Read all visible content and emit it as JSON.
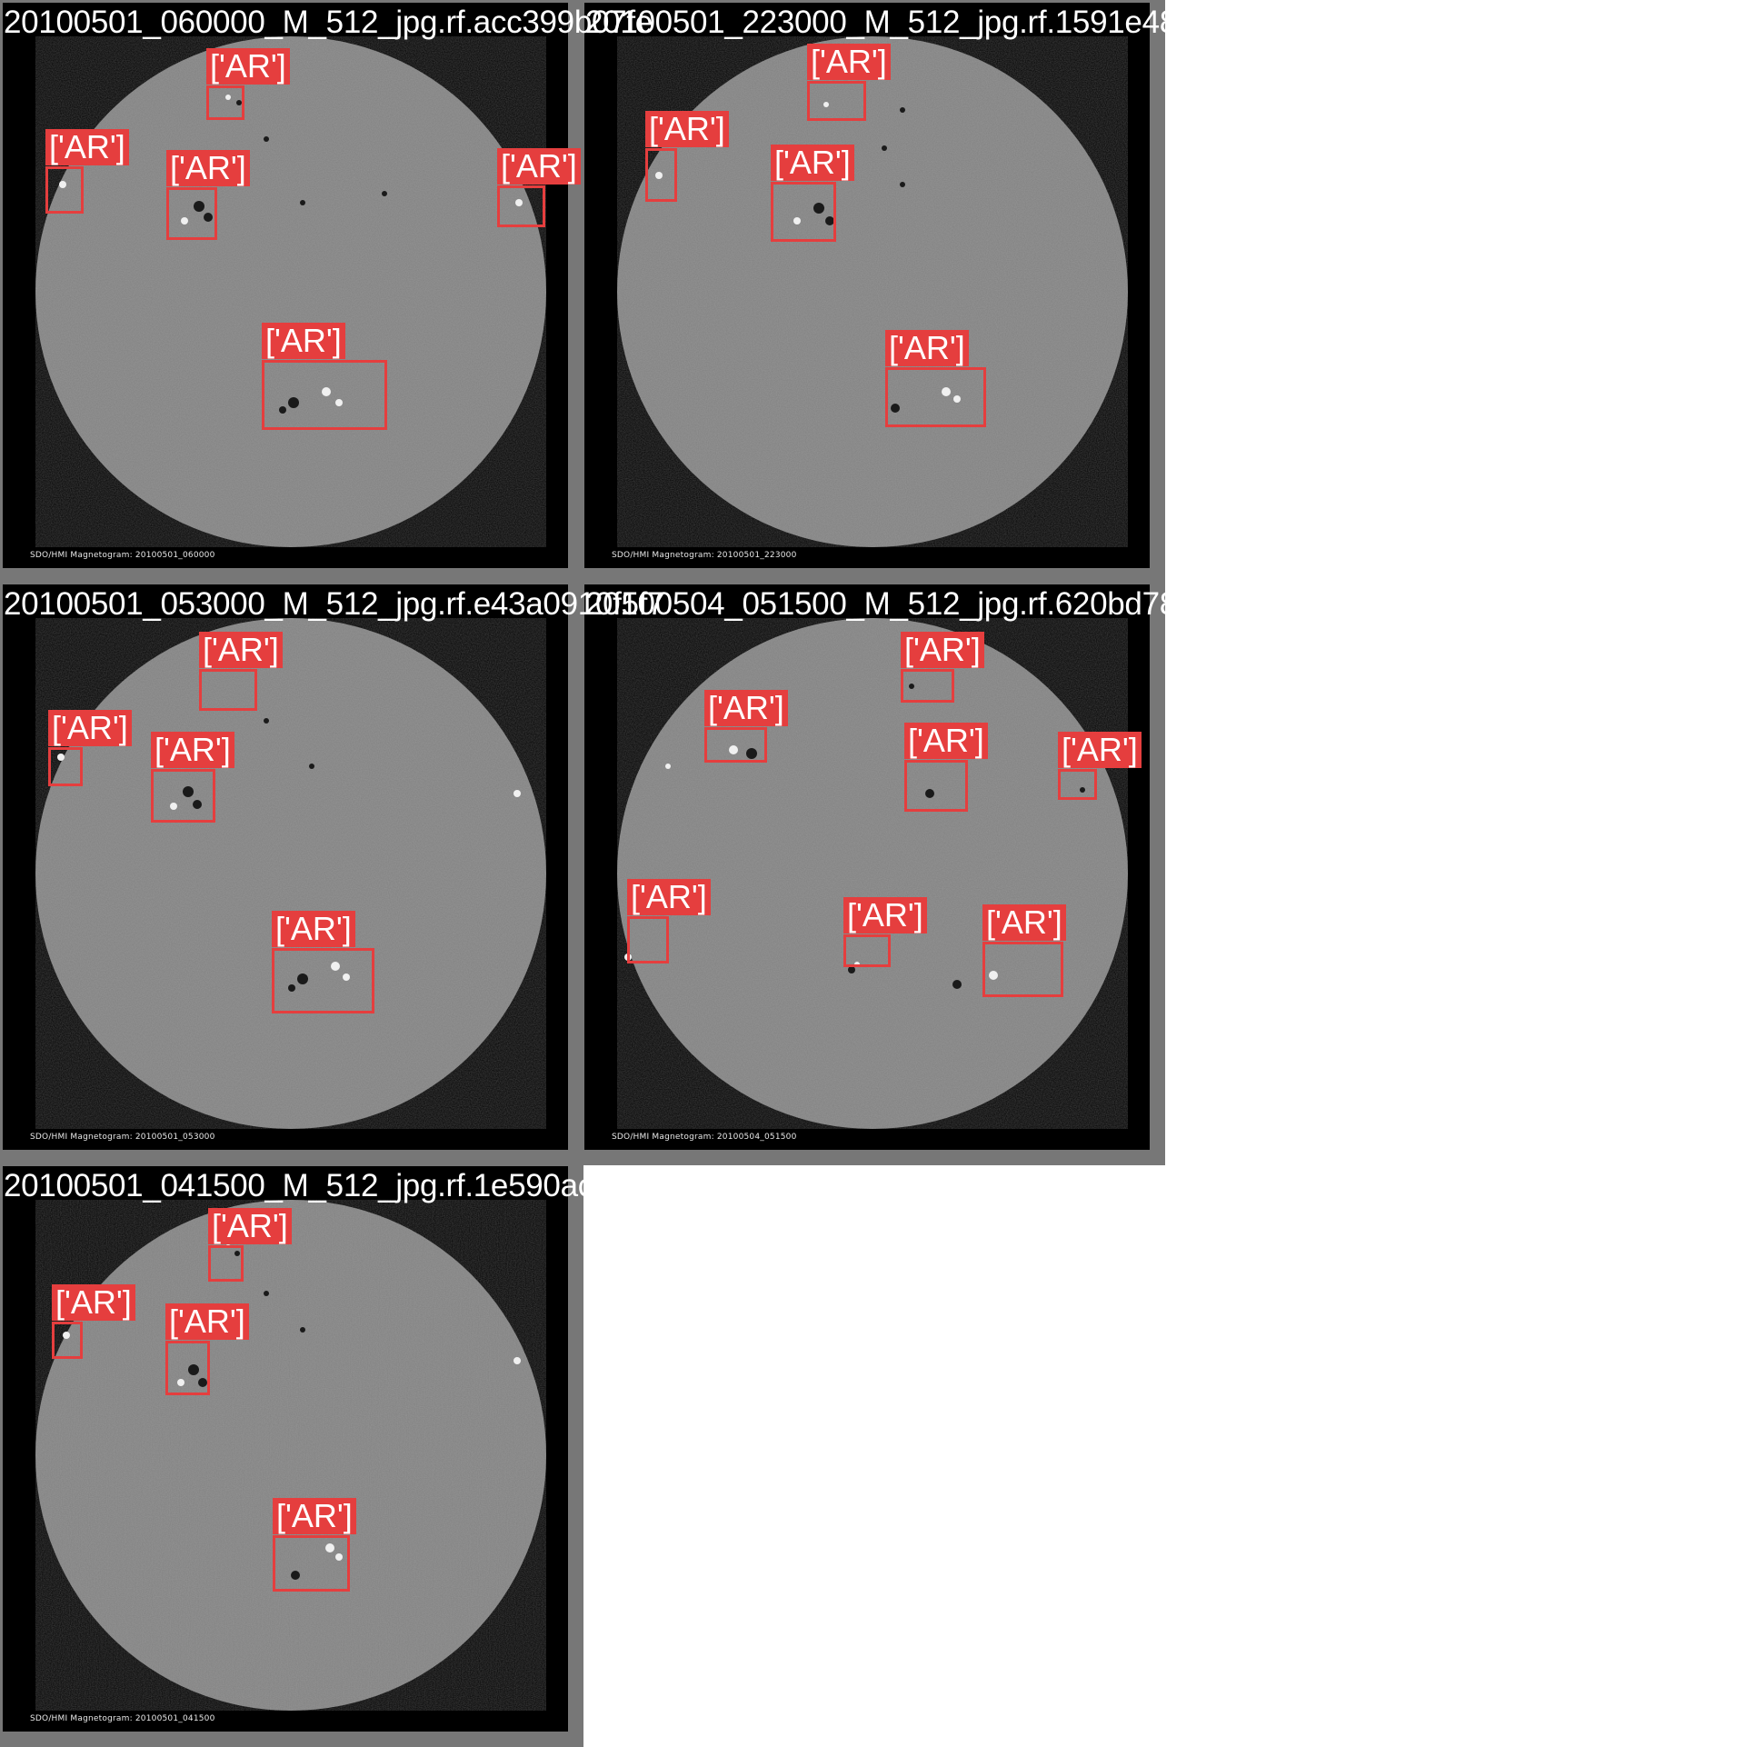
{
  "detection_label": "['AR']",
  "colors": {
    "box": "#e53e3e",
    "disk": "#808080",
    "background": "#000000",
    "tile_border": "#777777"
  },
  "tiles": [
    {
      "filename": "20100501_060000_M_512_jpg.rf.acc399b07fe",
      "caption": "SDO/HMI Magnetogram: 20100501_060000"
    },
    {
      "filename": "20100501_223000_M_512_jpg.rf.1591e487e16",
      "caption": "SDO/HMI Magnetogram: 20100501_223000"
    },
    {
      "filename": "20100501_053000_M_512_jpg.rf.e43a0910f5f7",
      "caption": "SDO/HMI Magnetogram: 20100501_053000"
    },
    {
      "filename": "20100504_051500_M_512_jpg.rf.620bd78d2c2",
      "caption": "SDO/HMI Magnetogram: 20100504_051500"
    },
    {
      "filename": "20100501_041500_M_512_jpg.rf.1e590ac868a",
      "caption": "SDO/HMI Magnetogram: 20100501_041500"
    }
  ]
}
